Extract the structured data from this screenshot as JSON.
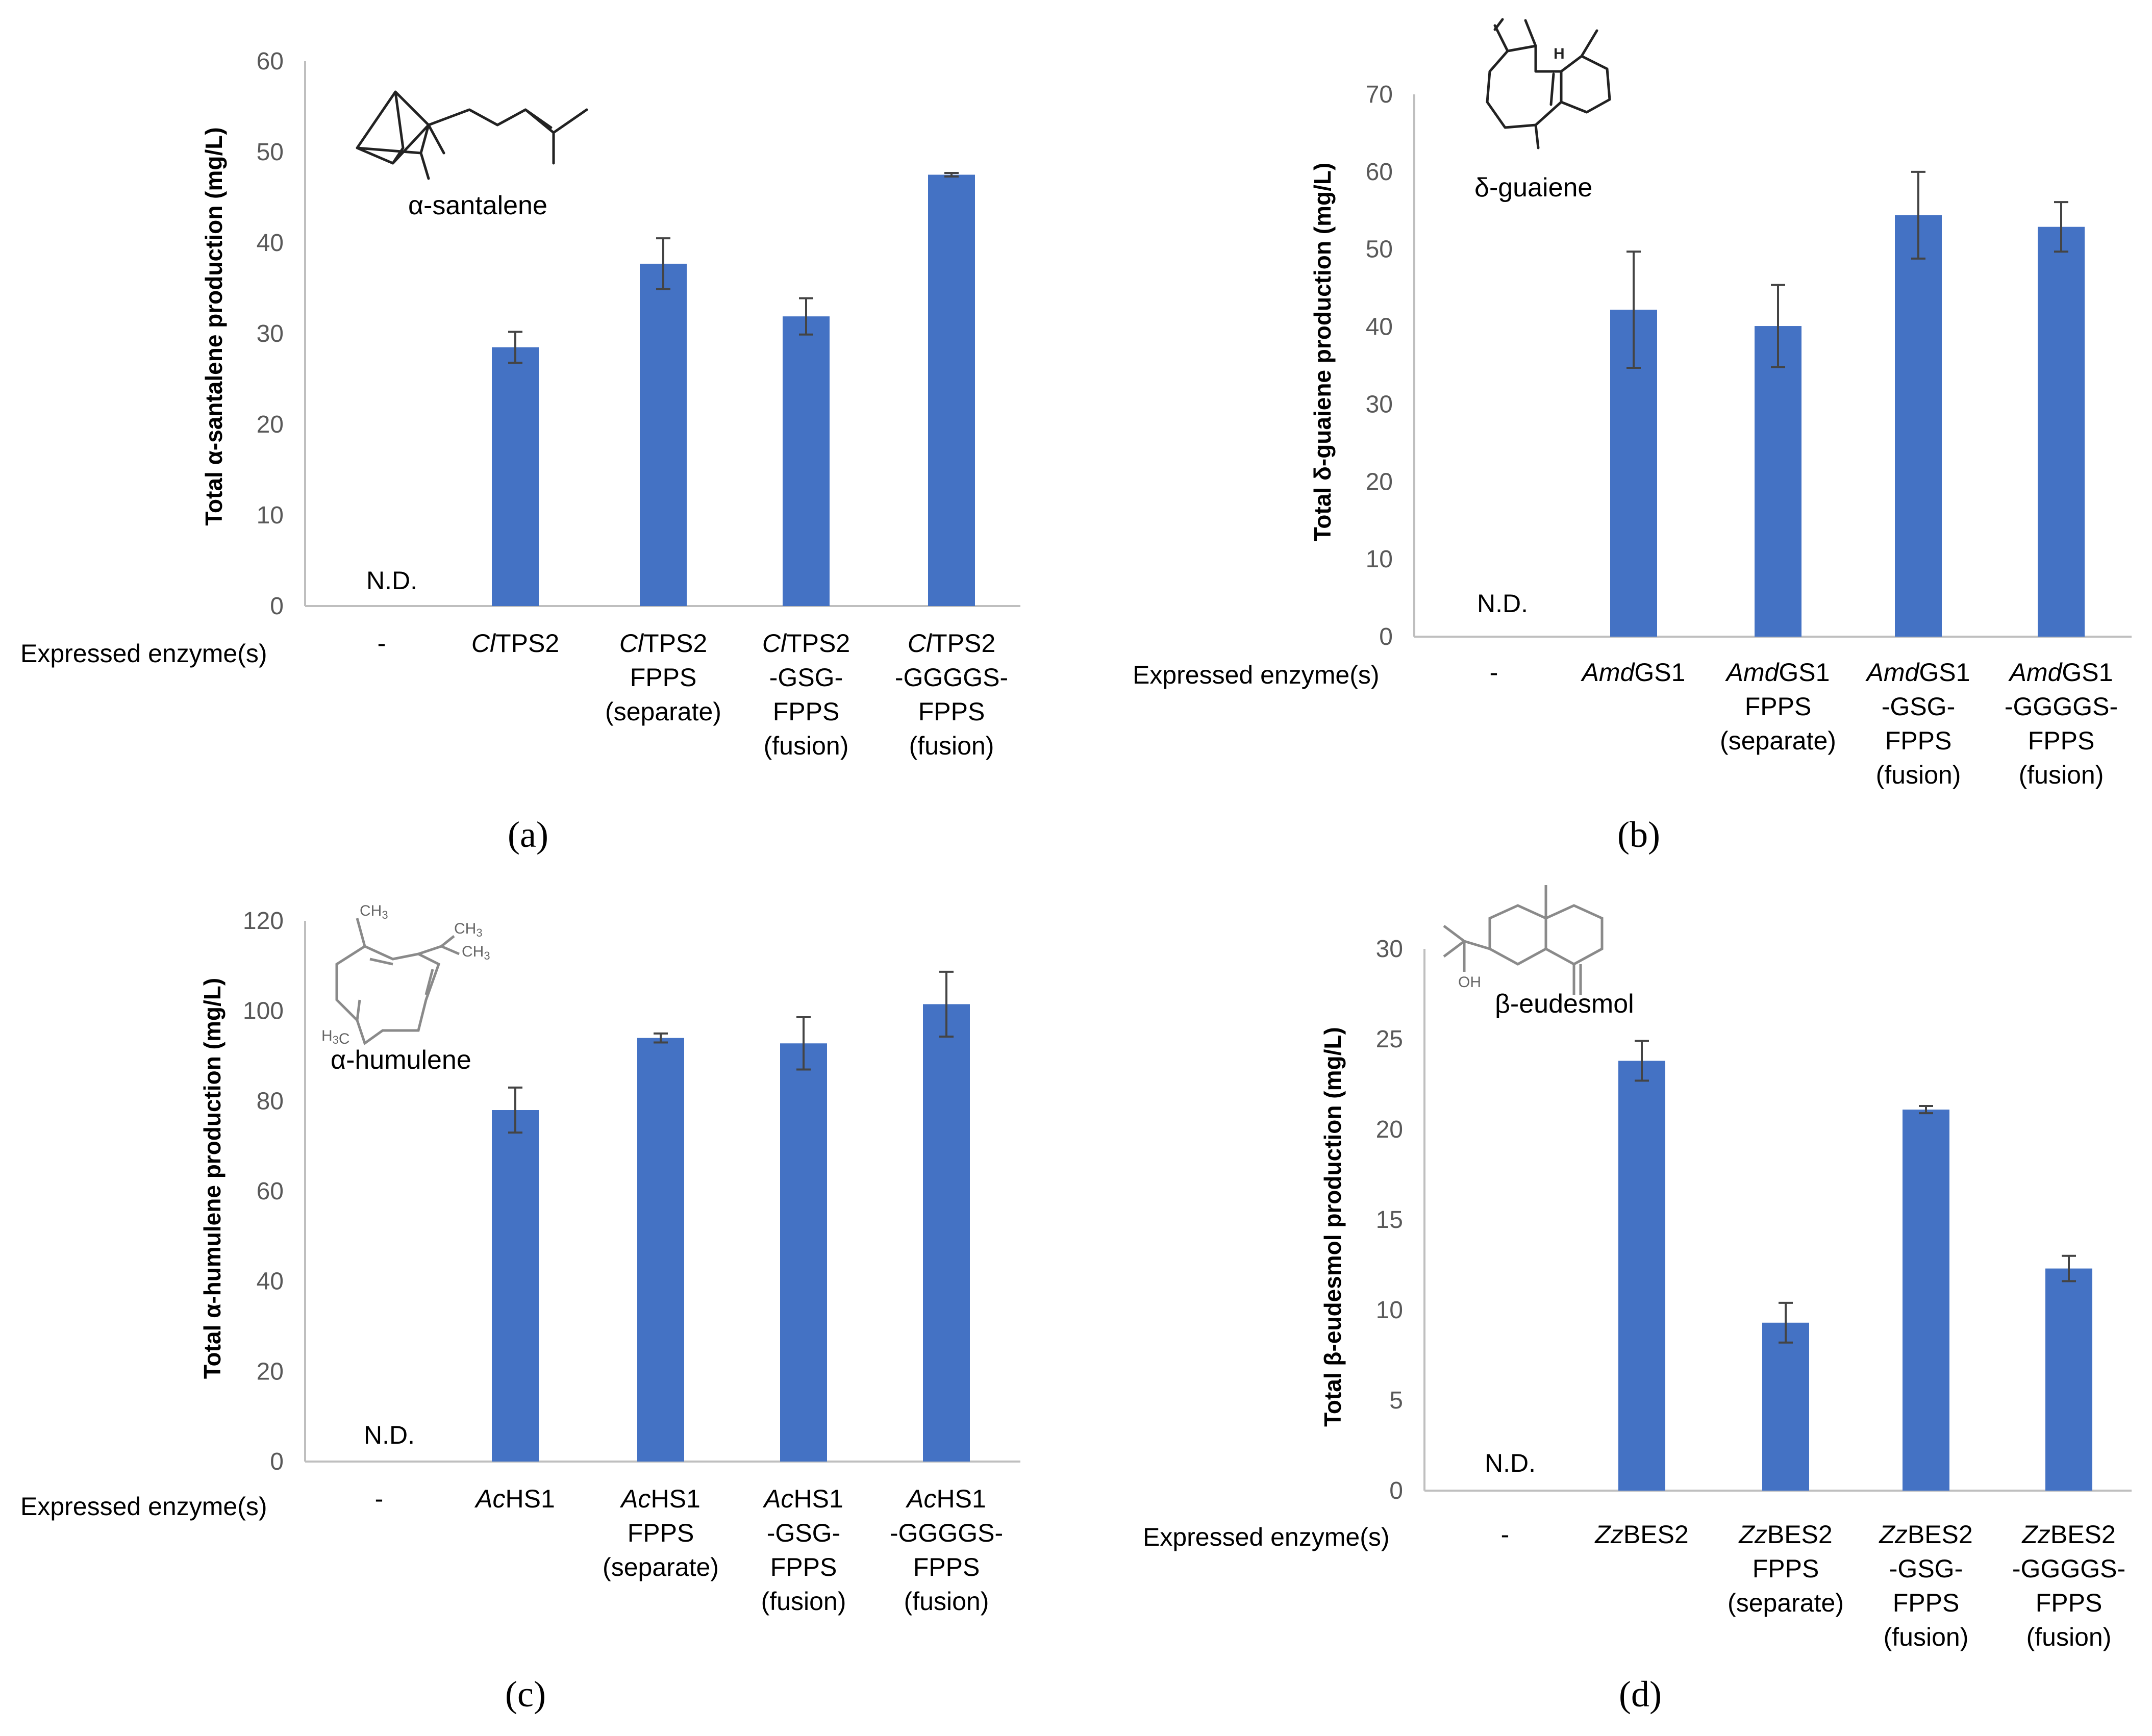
{
  "bar_color": "#4472C4",
  "axis_color": "#bfbfbf",
  "chart_data": [
    {
      "panel": "(a)",
      "type": "bar",
      "compound": "α-santalene",
      "ylabel": "Total α-santalene production (mg/L)",
      "row_label": "Expressed enzyme(s)",
      "yticks": [
        "0",
        "10",
        "20",
        "30",
        "40",
        "50",
        "60"
      ],
      "ylim": [
        0,
        60
      ],
      "nd_label": "N.D.",
      "categories": [
        {
          "prefix": "",
          "italic": "",
          "lines": [
            "-"
          ]
        },
        {
          "prefix": "",
          "italic": "Cl",
          "lines": [
            "TPS2"
          ]
        },
        {
          "prefix": "",
          "italic": "Cl",
          "lines": [
            "TPS2",
            "FPPS",
            "(separate)"
          ]
        },
        {
          "prefix": "",
          "italic": "Cl",
          "lines": [
            "TPS2",
            "-GSG-",
            "FPPS",
            "(fusion)"
          ]
        },
        {
          "prefix": "",
          "italic": "Cl",
          "lines": [
            "TPS2",
            "-GGGGS-",
            "FPPS",
            "(fusion)"
          ]
        }
      ],
      "values": [
        null,
        28.5,
        37.7,
        31.9,
        47.5
      ],
      "errors": [
        null,
        1.7,
        2.8,
        2.0,
        0.2
      ]
    },
    {
      "panel": "(b)",
      "type": "bar",
      "compound": "δ-guaiene",
      "ylabel": "Total δ-guaiene production (mg/L)",
      "row_label": "Expressed enzyme(s)",
      "yticks": [
        "0",
        "10",
        "20",
        "30",
        "40",
        "50",
        "60",
        "70"
      ],
      "ylim": [
        0,
        70
      ],
      "nd_label": "N.D.",
      "categories": [
        {
          "prefix": "",
          "italic": "",
          "lines": [
            "-"
          ]
        },
        {
          "prefix": "",
          "italic": "Amd",
          "lines": [
            "GS1"
          ]
        },
        {
          "prefix": "",
          "italic": "Amd",
          "lines": [
            "GS1",
            "FPPS",
            "(separate)"
          ]
        },
        {
          "prefix": "",
          "italic": "Amd",
          "lines": [
            "GS1",
            "-GSG-",
            "FPPS",
            "(fusion)"
          ]
        },
        {
          "prefix": "",
          "italic": "Amd",
          "lines": [
            "GS1",
            "-GGGGS-",
            "FPPS",
            "(fusion)"
          ]
        }
      ],
      "values": [
        null,
        42.2,
        40.1,
        54.4,
        52.9
      ],
      "errors": [
        null,
        7.5,
        5.3,
        5.6,
        3.2
      ]
    },
    {
      "panel": "(c)",
      "type": "bar",
      "compound": "α-humulene",
      "ylabel": "Total α-humulene production (mg/L)",
      "row_label": "Expressed enzyme(s)",
      "yticks": [
        "0",
        "20",
        "40",
        "60",
        "80",
        "100",
        "120"
      ],
      "ylim": [
        0,
        120
      ],
      "nd_label": "N.D.",
      "categories": [
        {
          "prefix": "",
          "italic": "",
          "lines": [
            "-"
          ]
        },
        {
          "prefix": "",
          "italic": "Ac",
          "lines": [
            "HS1"
          ]
        },
        {
          "prefix": "",
          "italic": "Ac",
          "lines": [
            "HS1",
            "FPPS",
            "(separate)"
          ]
        },
        {
          "prefix": "",
          "italic": "Ac",
          "lines": [
            "HS1",
            "-GSG-",
            "FPPS",
            "(fusion)"
          ]
        },
        {
          "prefix": "",
          "italic": "Ac",
          "lines": [
            "HS1",
            "-GGGGS-",
            "FPPS",
            "(fusion)"
          ]
        }
      ],
      "values": [
        null,
        78.0,
        94.0,
        92.8,
        101.5
      ],
      "errors": [
        null,
        5.0,
        1.0,
        5.8,
        7.2
      ]
    },
    {
      "panel": "(d)",
      "type": "bar",
      "compound": "β-eudesmol",
      "ylabel": "Total β-eudesmol production (mg/L)",
      "row_label": "Expressed enzyme(s)",
      "yticks": [
        "0",
        "5",
        "10",
        "15",
        "20",
        "25",
        "30"
      ],
      "ylim": [
        0,
        30
      ],
      "nd_label": "N.D.",
      "categories": [
        {
          "prefix": "",
          "italic": "",
          "lines": [
            "-"
          ]
        },
        {
          "prefix": "",
          "italic": "Zz",
          "lines": [
            "BES2"
          ]
        },
        {
          "prefix": "",
          "italic": "Zz",
          "lines": [
            "BES2",
            "FPPS",
            "(separate)"
          ]
        },
        {
          "prefix": "",
          "italic": "Zz",
          "lines": [
            "BES2",
            "-GSG-",
            "FPPS",
            "(fusion)"
          ]
        },
        {
          "prefix": "",
          "italic": "Zz",
          "lines": [
            "BES2",
            "-GGGGS-",
            "FPPS",
            "(fusion)"
          ]
        }
      ],
      "values": [
        null,
        23.8,
        9.3,
        21.1,
        12.3
      ],
      "errors": [
        null,
        1.1,
        1.1,
        0.2,
        0.7
      ]
    }
  ],
  "structure_labels": {
    "humulene_ch3_top": "CH3",
    "humulene_ch3_right1": "CH3",
    "humulene_ch3_right2": "CH3",
    "humulene_h3c": "H3C",
    "guaiene_h": "H",
    "eudesmol_oh": "OH"
  }
}
